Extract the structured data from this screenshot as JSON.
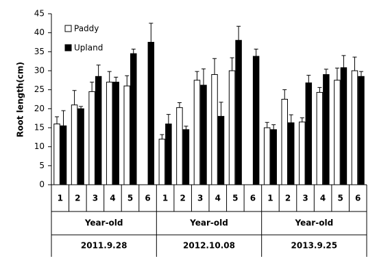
{
  "chart_data": {
    "type": "bar",
    "y_label": "Root length(cm)",
    "categories": [
      "1",
      "2",
      "3",
      "4",
      "5",
      "6",
      "1",
      "2",
      "3",
      "4",
      "5",
      "6",
      "1",
      "2",
      "3",
      "4",
      "5",
      "6"
    ],
    "groups": [
      {
        "name": "2011.9.28",
        "label": "Year-old"
      },
      {
        "name": "2012.10.08",
        "label": "Year-old"
      },
      {
        "name": "2013.9.25",
        "label": "Year-old"
      }
    ],
    "series": [
      {
        "name": "Paddy",
        "color": "#ffffff",
        "values": [
          16,
          21,
          24.5,
          27,
          26,
          null,
          12,
          20.3,
          27.5,
          29,
          30,
          null,
          15,
          22.5,
          16.5,
          24.3,
          27.5,
          30
        ],
        "errors": [
          1.9,
          3.8,
          2.5,
          2.8,
          2.7,
          null,
          1.2,
          1.3,
          2.3,
          4.2,
          3.4,
          null,
          1.4,
          2.5,
          1.1,
          1.3,
          3.2,
          3.6
        ]
      },
      {
        "name": "Upland",
        "color": "#000000",
        "values": [
          15.5,
          20,
          28.5,
          27,
          34.5,
          37.5,
          16,
          14.5,
          26.2,
          18,
          38,
          33.8,
          14.5,
          16.3,
          26.8,
          29,
          30.8,
          28.5
        ],
        "errors": [
          4,
          0.6,
          3,
          1.3,
          1.2,
          5,
          2.5,
          0.9,
          4.3,
          3.7,
          3.7,
          1.9,
          1.3,
          2.1,
          2,
          1.4,
          3.2,
          1.3
        ]
      }
    ],
    "ylim": [
      0,
      45
    ],
    "yticks": [
      0,
      5,
      10,
      15,
      20,
      25,
      30,
      35,
      40,
      45
    ],
    "legend": "upper-left"
  }
}
